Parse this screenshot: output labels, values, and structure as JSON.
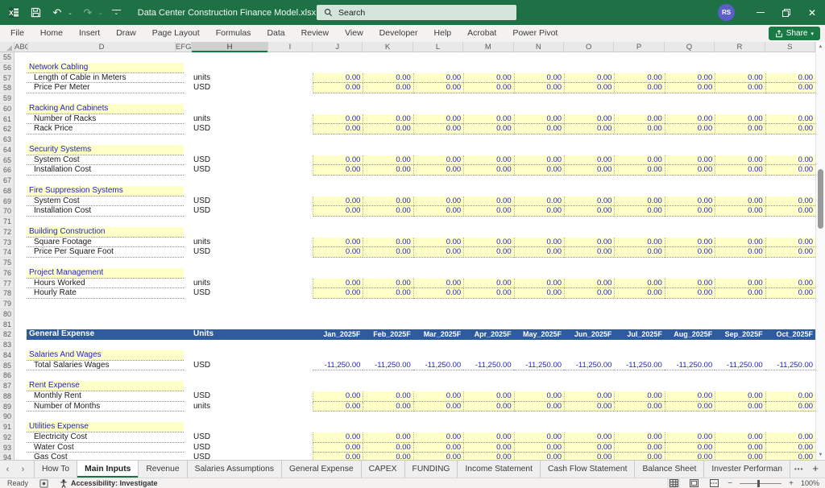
{
  "title_bar": {
    "title": "Data Center Construction Finance Model.xlsx  -  Excel",
    "search_placeholder": "Search",
    "avatar_initials": "RS"
  },
  "ribbon": {
    "tabs": [
      "File",
      "Home",
      "Insert",
      "Draw",
      "Page Layout",
      "Formulas",
      "Data",
      "Review",
      "View",
      "Developer",
      "Help",
      "Acrobat",
      "Power Pivot"
    ],
    "share_label": "Share"
  },
  "colors": {
    "titlebar_green": "#1E7145",
    "accent_green": "#107C41",
    "input_yellow": "#FFFFC8",
    "value_blue": "#2222CC",
    "table_header_blue": "#2E5B9B"
  },
  "grid": {
    "column_headers": [
      "ABC",
      "D",
      "EFG",
      "H",
      "I",
      "J",
      "K",
      "L",
      "M",
      "N",
      "O",
      "P",
      "Q",
      "R",
      "S"
    ],
    "selected_column": "H",
    "months": [
      "Jan_2025F",
      "Feb_2025F",
      "Mar_2025F",
      "Apr_2025F",
      "May_2025F",
      "Jun_2025F",
      "Jul_2025F",
      "Aug_2025F",
      "Sep_2025F",
      "Oct_2025F"
    ],
    "rows": [
      {
        "num": 55,
        "type": "blank"
      },
      {
        "num": 56,
        "type": "section",
        "label": "Network Cabling"
      },
      {
        "num": 57,
        "type": "input",
        "label": "Length of Cable in Meters",
        "unit": "units",
        "values": [
          "0.00",
          "0.00",
          "0.00",
          "0.00",
          "0.00",
          "0.00",
          "0.00",
          "0.00",
          "0.00",
          "0.00"
        ]
      },
      {
        "num": 58,
        "type": "input",
        "label": "Price Per Meter",
        "unit": "USD",
        "values": [
          "0.00",
          "0.00",
          "0.00",
          "0.00",
          "0.00",
          "0.00",
          "0.00",
          "0.00",
          "0.00",
          "0.00"
        ]
      },
      {
        "num": 59,
        "type": "blank"
      },
      {
        "num": 60,
        "type": "section",
        "label": "Racking And Cabinets"
      },
      {
        "num": 61,
        "type": "input",
        "label": "Number of Racks",
        "unit": "units",
        "values": [
          "0.00",
          "0.00",
          "0.00",
          "0.00",
          "0.00",
          "0.00",
          "0.00",
          "0.00",
          "0.00",
          "0.00"
        ]
      },
      {
        "num": 62,
        "type": "input",
        "label": "Rack Price",
        "unit": "USD",
        "values": [
          "0.00",
          "0.00",
          "0.00",
          "0.00",
          "0.00",
          "0.00",
          "0.00",
          "0.00",
          "0.00",
          "0.00"
        ]
      },
      {
        "num": 63,
        "type": "blank"
      },
      {
        "num": 64,
        "type": "section",
        "label": "Security Systems"
      },
      {
        "num": 65,
        "type": "input",
        "label": "System Cost",
        "unit": "USD",
        "values": [
          "0.00",
          "0.00",
          "0.00",
          "0.00",
          "0.00",
          "0.00",
          "0.00",
          "0.00",
          "0.00",
          "0.00"
        ]
      },
      {
        "num": 66,
        "type": "input",
        "label": "Installation Cost",
        "unit": "USD",
        "values": [
          "0.00",
          "0.00",
          "0.00",
          "0.00",
          "0.00",
          "0.00",
          "0.00",
          "0.00",
          "0.00",
          "0.00"
        ]
      },
      {
        "num": 67,
        "type": "blank"
      },
      {
        "num": 68,
        "type": "section",
        "label": "Fire Suppression Systems"
      },
      {
        "num": 69,
        "type": "input",
        "label": "System Cost",
        "unit": "USD",
        "values": [
          "0.00",
          "0.00",
          "0.00",
          "0.00",
          "0.00",
          "0.00",
          "0.00",
          "0.00",
          "0.00",
          "0.00"
        ]
      },
      {
        "num": 70,
        "type": "input",
        "label": "Installation Cost",
        "unit": "USD",
        "values": [
          "0.00",
          "0.00",
          "0.00",
          "0.00",
          "0.00",
          "0.00",
          "0.00",
          "0.00",
          "0.00",
          "0.00"
        ]
      },
      {
        "num": 71,
        "type": "blank"
      },
      {
        "num": 72,
        "type": "section",
        "label": "Building Construction"
      },
      {
        "num": 73,
        "type": "input",
        "label": "Square Footage",
        "unit": "units",
        "values": [
          "0.00",
          "0.00",
          "0.00",
          "0.00",
          "0.00",
          "0.00",
          "0.00",
          "0.00",
          "0.00",
          "0.00"
        ]
      },
      {
        "num": 74,
        "type": "input",
        "label": "Price Per Square Foot",
        "unit": "USD",
        "values": [
          "0.00",
          "0.00",
          "0.00",
          "0.00",
          "0.00",
          "0.00",
          "0.00",
          "0.00",
          "0.00",
          "0.00"
        ]
      },
      {
        "num": 75,
        "type": "blank"
      },
      {
        "num": 76,
        "type": "section",
        "label": "Project Management"
      },
      {
        "num": 77,
        "type": "input",
        "label": "Hours Worked",
        "unit": "units",
        "values": [
          "0.00",
          "0.00",
          "0.00",
          "0.00",
          "0.00",
          "0.00",
          "0.00",
          "0.00",
          "0.00",
          "0.00"
        ]
      },
      {
        "num": 78,
        "type": "input",
        "label": "Hourly Rate",
        "unit": "USD",
        "values": [
          "0.00",
          "0.00",
          "0.00",
          "0.00",
          "0.00",
          "0.00",
          "0.00",
          "0.00",
          "0.00",
          "0.00"
        ]
      },
      {
        "num": 79,
        "type": "blank"
      },
      {
        "num": 80,
        "type": "blank"
      },
      {
        "num": 81,
        "type": "blank"
      },
      {
        "num": 82,
        "type": "tableheader",
        "label": "General Expense",
        "unit": "Units"
      },
      {
        "num": 83,
        "type": "blank"
      },
      {
        "num": 84,
        "type": "section",
        "label": "Salaries And Wages"
      },
      {
        "num": 85,
        "type": "calc",
        "label": "Total Salaries Wages",
        "unit": "USD",
        "values": [
          "-11,250.00",
          "-11,250.00",
          "-11,250.00",
          "-11,250.00",
          "-11,250.00",
          "-11,250.00",
          "-11,250.00",
          "-11,250.00",
          "-11,250.00",
          "-11,250.00"
        ]
      },
      {
        "num": 86,
        "type": "blank"
      },
      {
        "num": 87,
        "type": "section",
        "label": "Rent Expense"
      },
      {
        "num": 88,
        "type": "input",
        "label": "Monthly Rent",
        "unit": "USD",
        "values": [
          "0.00",
          "0.00",
          "0.00",
          "0.00",
          "0.00",
          "0.00",
          "0.00",
          "0.00",
          "0.00",
          "0.00"
        ]
      },
      {
        "num": 89,
        "type": "input",
        "label": "Number of Months",
        "unit": "units",
        "values": [
          "0.00",
          "0.00",
          "0.00",
          "0.00",
          "0.00",
          "0.00",
          "0.00",
          "0.00",
          "0.00",
          "0.00"
        ]
      },
      {
        "num": 90,
        "type": "blank"
      },
      {
        "num": 91,
        "type": "section",
        "label": "Utilities Expense"
      },
      {
        "num": 92,
        "type": "input",
        "label": "Electricity Cost",
        "unit": "USD",
        "values": [
          "0.00",
          "0.00",
          "0.00",
          "0.00",
          "0.00",
          "0.00",
          "0.00",
          "0.00",
          "0.00",
          "0.00"
        ]
      },
      {
        "num": 93,
        "type": "input",
        "label": "Water Cost",
        "unit": "USD",
        "values": [
          "0.00",
          "0.00",
          "0.00",
          "0.00",
          "0.00",
          "0.00",
          "0.00",
          "0.00",
          "0.00",
          "0.00"
        ]
      },
      {
        "num": 94,
        "type": "input",
        "label": "Gas Cost",
        "unit": "USD",
        "values": [
          "0.00",
          "0.00",
          "0.00",
          "0.00",
          "0.00",
          "0.00",
          "0.00",
          "0.00",
          "0.00",
          "0.00"
        ]
      }
    ]
  },
  "sheet_tabs": {
    "tabs": [
      "How To",
      "Main Inputs",
      "Revenue",
      "Salaries Assumptions",
      "General Expense",
      "CAPEX",
      "FUNDING",
      "Income Statement",
      "Cash Flow Statement",
      "Balance Sheet",
      "Invester Performan"
    ],
    "active_tab": "Main Inputs",
    "overflow_indicator": "•••"
  },
  "status_bar": {
    "mode": "Ready",
    "accessibility": "Accessibility: Investigate",
    "zoom_level": "100%"
  }
}
